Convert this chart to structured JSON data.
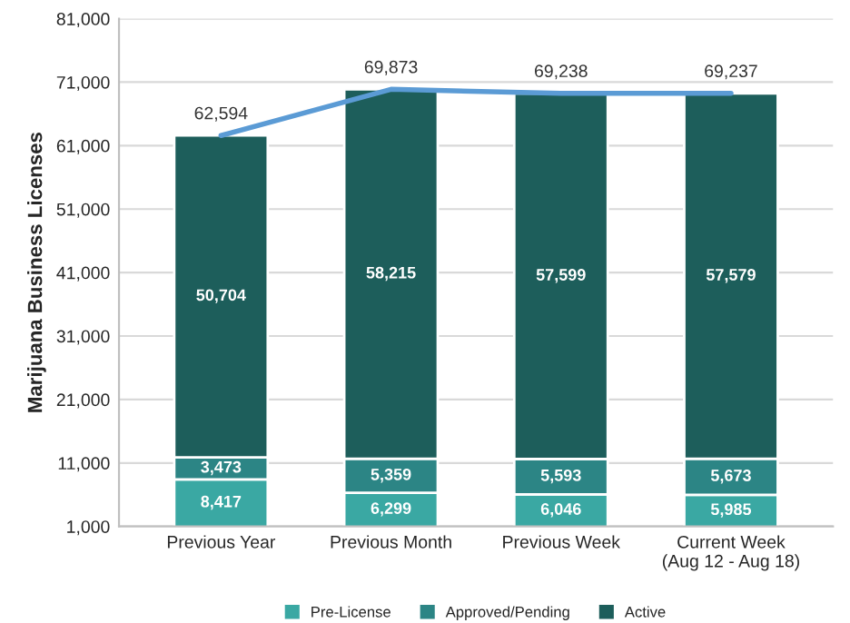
{
  "chart_data": {
    "type": "bar",
    "stacked": true,
    "ylabel": "Marijuana Business Licenses",
    "categories": [
      "Previous Year",
      "Previous Month",
      "Previous Week",
      "Current Week\n(Aug 12 - Aug 18)"
    ],
    "series": [
      {
        "name": "Pre-License",
        "color": "#3aa8a3",
        "values": [
          8417,
          6299,
          6046,
          5985
        ],
        "value_labels": [
          "8,417",
          "6,299",
          "6,046",
          "5,985"
        ]
      },
      {
        "name": "Approved/Pending",
        "color": "#2c8585",
        "values": [
          3473,
          5359,
          5593,
          5673
        ],
        "value_labels": [
          "3,473",
          "5,359",
          "5,593",
          "5,673"
        ]
      },
      {
        "name": "Active",
        "color": "#1d5e5b",
        "values": [
          50704,
          58215,
          57599,
          57579
        ],
        "value_labels": [
          "50,704",
          "58,215",
          "57,599",
          "57,579"
        ]
      },
      {
        "type": "line",
        "color": "#5b9bd5",
        "values": [
          62594,
          69873,
          69238,
          69237
        ],
        "value_labels": [
          "62,594",
          "69,873",
          "69,238",
          "69,237"
        ]
      }
    ],
    "ylim": [
      1000,
      81000
    ],
    "yticks": [
      {
        "value": 1000,
        "label": "1,000"
      },
      {
        "value": 11000,
        "label": "11,000"
      },
      {
        "value": 21000,
        "label": "21,000"
      },
      {
        "value": 31000,
        "label": "31,000"
      },
      {
        "value": 41000,
        "label": "41,000"
      },
      {
        "value": 51000,
        "label": "51,000"
      },
      {
        "value": 61000,
        "label": "61,000"
      },
      {
        "value": 71000,
        "label": "71,000"
      },
      {
        "value": 81000,
        "label": "81,000"
      }
    ],
    "grid": "y",
    "legend": "bottom",
    "marker": "none"
  }
}
